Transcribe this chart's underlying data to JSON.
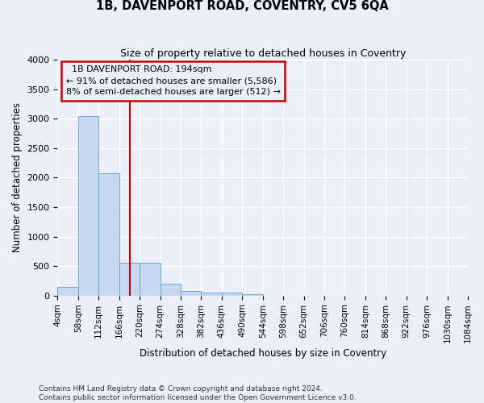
{
  "title": "1B, DAVENPORT ROAD, COVENTRY, CV5 6QA",
  "subtitle": "Size of property relative to detached houses in Coventry",
  "xlabel": "Distribution of detached houses by size in Coventry",
  "ylabel": "Number of detached properties",
  "property_size": 194,
  "property_label": "1B DAVENPORT ROAD: 194sqm",
  "pct_smaller": 91,
  "count_smaller": 5586,
  "pct_semi_larger": 8,
  "count_semi_larger": 512,
  "bin_edges": [
    4,
    58,
    112,
    166,
    220,
    274,
    328,
    382,
    436,
    490,
    544,
    598,
    652,
    706,
    760,
    814,
    868,
    922,
    976,
    1030,
    1084
  ],
  "bar_heights": [
    140,
    3050,
    2080,
    550,
    550,
    200,
    80,
    55,
    45,
    30,
    0,
    0,
    0,
    0,
    0,
    0,
    0,
    0,
    0,
    0
  ],
  "bar_color": "#c5d8f0",
  "bar_edge_color": "#6aaad4",
  "vline_x": 194,
  "vline_color": "#cc0000",
  "annotation_box_color": "#cc0000",
  "background_color": "#eaeff8",
  "grid_color": "#ffffff",
  "footer_line1": "Contains HM Land Registry data © Crown copyright and database right 2024.",
  "footer_line2": "Contains public sector information licensed under the Open Government Licence v3.0.",
  "ylim": [
    0,
    4000
  ],
  "yticks": [
    0,
    500,
    1000,
    1500,
    2000,
    2500,
    3000,
    3500,
    4000
  ]
}
